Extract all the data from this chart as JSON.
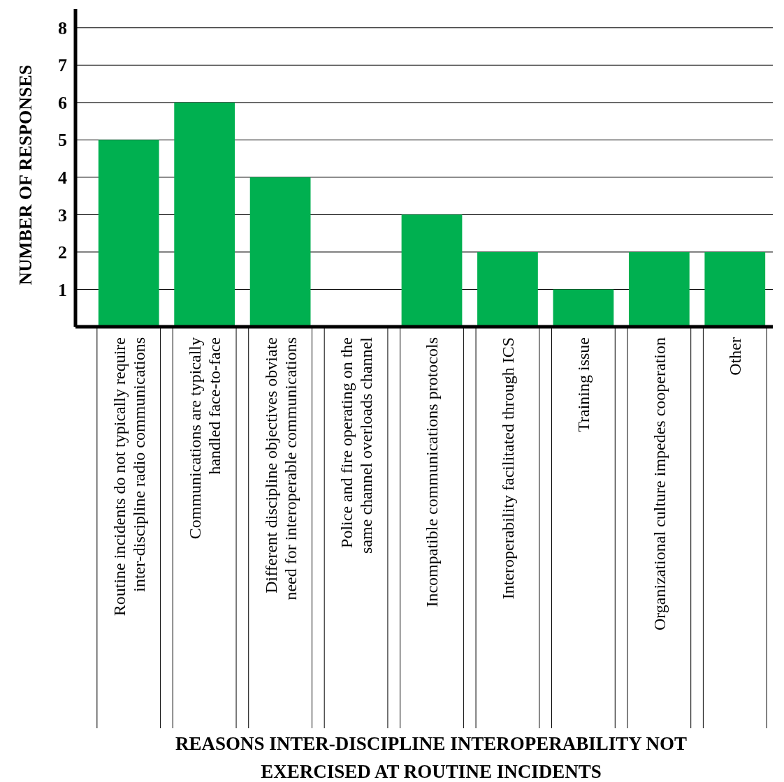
{
  "chart_data": {
    "type": "bar",
    "annotations": [
      "REASONS INTER-DISCIPLINE INTEROPERABILITY NOT EXERCISED AT ROUTINE INCIDENTS"
    ],
    "ylabel": "NUMBER OF RESPONSES",
    "categories": [
      "Routine incidents do not typically require inter-discipline radio communications",
      "Communications are typically handled face-to-face",
      "Different discipline objectives obviate need for interoperable communications",
      "Police and fire operating on the same channel overloads channel",
      "Incompatible communications protocols",
      "Interoperability facilitated through ICS",
      "Training issue",
      "Organizational culture impedes cooperation",
      "Other"
    ],
    "values": [
      5,
      6,
      4,
      0,
      3,
      2,
      1,
      2,
      2
    ],
    "color": "#00b050",
    "ylim": [
      0,
      8.5
    ],
    "yticks": [
      1,
      2,
      3,
      4,
      5,
      6,
      7,
      8
    ],
    "grid": "y"
  }
}
